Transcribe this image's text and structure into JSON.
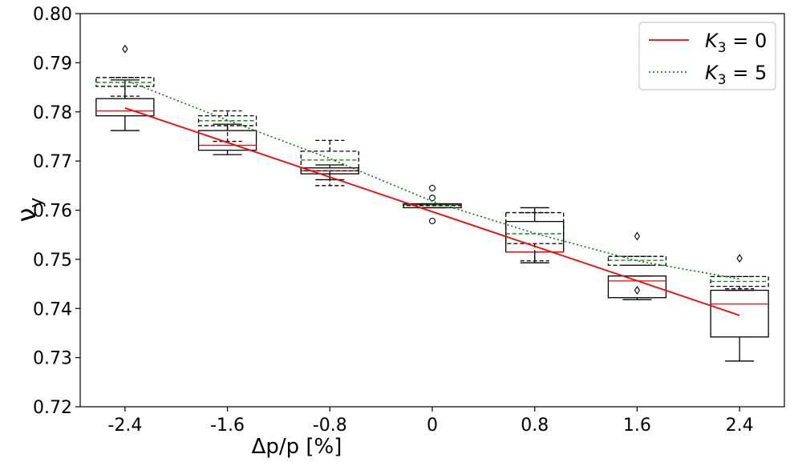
{
  "chart_data": {
    "type": "box",
    "title": "",
    "xlabel": "Δp/p [%]",
    "ylabel": "ν",
    "ylabel_subscript": "y",
    "categories": [
      "-2.4",
      "-1.6",
      "-0.8",
      "0",
      "0.8",
      "1.6",
      "2.4"
    ],
    "x": [
      -2.4,
      -1.6,
      -0.8,
      0,
      0.8,
      1.6,
      2.4
    ],
    "ylim": [
      0.72,
      0.8
    ],
    "yticks": [
      "0.72",
      "0.73",
      "0.74",
      "0.75",
      "0.76",
      "0.77",
      "0.78",
      "0.79",
      "0.80"
    ],
    "grid": false,
    "legend_position": "top-right",
    "boxes": [
      {
        "name": "K3 = 0 distribution",
        "style": "solid",
        "data": [
          {
            "x": -2.4,
            "whislo": 0.7762,
            "q1": 0.7792,
            "median": 0.7802,
            "q3": 0.7827,
            "whishi": 0.7865,
            "fliers": []
          },
          {
            "x": -1.6,
            "whislo": 0.7713,
            "q1": 0.7722,
            "median": 0.7732,
            "q3": 0.7762,
            "whishi": 0.7775,
            "fliers": []
          },
          {
            "x": -0.8,
            "whislo": 0.7662,
            "q1": 0.7674,
            "median": 0.768,
            "q3": 0.7686,
            "whishi": 0.7692,
            "fliers": []
          },
          {
            "x": 0,
            "whislo": 0.7605,
            "q1": 0.7605,
            "median": 0.7611,
            "q3": 0.7613,
            "whishi": 0.7613,
            "fliers": [
              0.7645,
              0.7625,
              0.7578
            ]
          },
          {
            "x": 0.8,
            "whislo": 0.7493,
            "q1": 0.7515,
            "median": 0.7515,
            "q3": 0.7577,
            "whishi": 0.7605,
            "fliers": []
          },
          {
            "x": 1.6,
            "whislo": 0.7418,
            "q1": 0.7422,
            "median": 0.7456,
            "q3": 0.7466,
            "whishi": 0.7466,
            "fliers": []
          },
          {
            "x": 2.4,
            "whislo": 0.7293,
            "q1": 0.7342,
            "median": 0.7409,
            "q3": 0.7437,
            "whishi": 0.7437,
            "fliers": []
          }
        ]
      },
      {
        "name": "K3 = 5 distribution",
        "style": "dashed",
        "data": [
          {
            "x": -2.4,
            "whislo": 0.7832,
            "q1": 0.7852,
            "median": 0.786,
            "q3": 0.787,
            "whishi": 0.787,
            "fliers": [
              0.7928
            ]
          },
          {
            "x": -1.6,
            "whislo": 0.774,
            "q1": 0.7772,
            "median": 0.7782,
            "q3": 0.7792,
            "whishi": 0.7802,
            "fliers": []
          },
          {
            "x": -0.8,
            "whislo": 0.765,
            "q1": 0.768,
            "median": 0.7702,
            "q3": 0.772,
            "whishi": 0.7742,
            "fliers": []
          },
          {
            "x": 0,
            "whislo": 0.7611,
            "q1": 0.7611,
            "median": 0.7611,
            "q3": 0.7611,
            "whishi": 0.7611,
            "fliers": []
          },
          {
            "x": 0.8,
            "whislo": 0.7497,
            "q1": 0.7532,
            "median": 0.7552,
            "q3": 0.7595,
            "whishi": 0.7595,
            "fliers": []
          },
          {
            "x": 1.6,
            "whislo": 0.7488,
            "q1": 0.7488,
            "median": 0.7498,
            "q3": 0.7506,
            "whishi": 0.7506,
            "fliers": [
              0.7547,
              0.7437
            ]
          },
          {
            "x": 2.4,
            "whislo": 0.744,
            "q1": 0.7445,
            "median": 0.7455,
            "q3": 0.7465,
            "whishi": 0.7465,
            "fliers": [
              0.7502
            ]
          }
        ]
      }
    ],
    "series": [
      {
        "name": "K3 = 0",
        "legend_label": "K",
        "legend_sub": "3",
        "legend_value": " = 0",
        "color": "#ff0000",
        "style": "solid",
        "x": [
          -2.4,
          2.4
        ],
        "values": [
          0.7808,
          0.7386
        ]
      },
      {
        "name": "K3 = 5",
        "legend_label": "K",
        "legend_sub": "3",
        "legend_value": " = 5",
        "color": "#008000",
        "style": "dotted",
        "x": [
          -2.4,
          -1.6,
          -0.8,
          0,
          0.8,
          1.6,
          2.4
        ],
        "values": [
          0.7865,
          0.7783,
          0.7705,
          0.7618,
          0.7553,
          0.7497,
          0.746
        ]
      }
    ]
  }
}
